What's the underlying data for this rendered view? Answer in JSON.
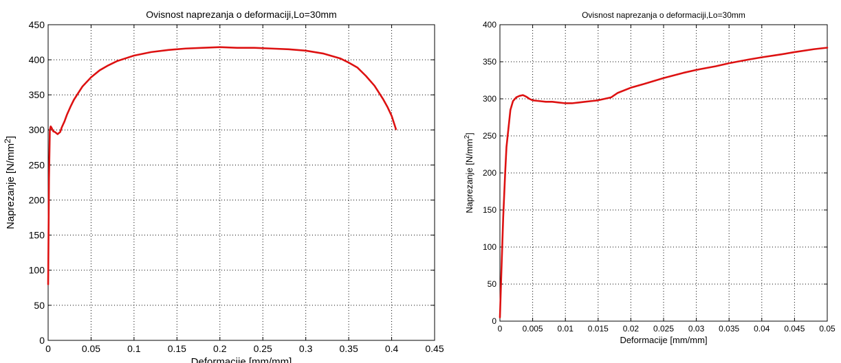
{
  "chart_data": [
    {
      "type": "line",
      "title": "Ovisnost naprezanja o deformaciji,Lo=30mm",
      "xlabel": "Deformacije [mm/mm]",
      "ylabel_main": "Naprezanje [N/mm",
      "ylabel_sup": "2",
      "ylabel_end": "]",
      "xlim": [
        0,
        0.45
      ],
      "ylim": [
        0,
        450
      ],
      "xticks": [
        0,
        0.05,
        0.1,
        0.15,
        0.2,
        0.25,
        0.3,
        0.35,
        0.4,
        0.45
      ],
      "xtick_labels": [
        "0",
        "0.05",
        "0.1",
        "0.15",
        "0.2",
        "0.25",
        "0.3",
        "0.35",
        "0.4",
        "0.45"
      ],
      "yticks": [
        0,
        50,
        100,
        150,
        200,
        250,
        300,
        350,
        400,
        450
      ],
      "ytick_labels": [
        "0",
        "50",
        "100",
        "150",
        "200",
        "250",
        "300",
        "350",
        "400",
        "450"
      ],
      "grid": true,
      "line_color": "#dd1111",
      "series": [
        {
          "x": [
            0.0,
            0.001,
            0.002,
            0.003,
            0.004,
            0.006,
            0.008,
            0.011,
            0.014,
            0.016,
            0.019,
            0.022,
            0.026,
            0.03,
            0.04,
            0.05,
            0.06,
            0.07,
            0.08,
            0.09,
            0.1,
            0.12,
            0.14,
            0.16,
            0.18,
            0.2,
            0.22,
            0.24,
            0.26,
            0.28,
            0.3,
            0.32,
            0.34,
            0.35,
            0.36,
            0.37,
            0.38,
            0.39,
            0.395,
            0.4,
            0.405
          ],
          "y": [
            80,
            230,
            300,
            305,
            303,
            298,
            297,
            294,
            297,
            304,
            312,
            322,
            333,
            343,
            362,
            375,
            385,
            392,
            398,
            402,
            406,
            411,
            414,
            416,
            417,
            418,
            417,
            417,
            416,
            415,
            413,
            409,
            402,
            396,
            389,
            377,
            363,
            344,
            333,
            320,
            301
          ]
        }
      ]
    },
    {
      "type": "line",
      "title": "Ovisnost naprezanja o deformaciji,Lo=30mm",
      "xlabel": "Deformacije [mm/mm]",
      "ylabel_main": "Naprezanje [N/mm",
      "ylabel_sup": "2",
      "ylabel_end": "]",
      "xlim": [
        0,
        0.05
      ],
      "ylim": [
        0,
        400
      ],
      "xticks": [
        0,
        0.005,
        0.01,
        0.015,
        0.02,
        0.025,
        0.03,
        0.035,
        0.04,
        0.045,
        0.05
      ],
      "xtick_labels": [
        "0",
        "0.005",
        "0.01",
        "0.015",
        "0.02",
        "0.025",
        "0.03",
        "0.035",
        "0.04",
        "0.045",
        "0.05"
      ],
      "yticks": [
        0,
        50,
        100,
        150,
        200,
        250,
        300,
        350,
        400
      ],
      "ytick_labels": [
        "0",
        "50",
        "100",
        "150",
        "200",
        "250",
        "300",
        "350",
        "400"
      ],
      "grid": true,
      "line_color": "#dd1111",
      "series": [
        {
          "x": [
            0.0,
            0.0002,
            0.0005,
            0.0008,
            0.001,
            0.0013,
            0.0016,
            0.002,
            0.0025,
            0.003,
            0.0035,
            0.004,
            0.0045,
            0.005,
            0.006,
            0.007,
            0.008,
            0.009,
            0.01,
            0.011,
            0.012,
            0.013,
            0.014,
            0.015,
            0.016,
            0.017,
            0.018,
            0.02,
            0.022,
            0.025,
            0.028,
            0.03,
            0.033,
            0.035,
            0.038,
            0.04,
            0.043,
            0.045,
            0.048,
            0.05
          ],
          "y": [
            5,
            60,
            140,
            200,
            235,
            260,
            285,
            297,
            302,
            304,
            305,
            303,
            300,
            298,
            297,
            296,
            296,
            295,
            294,
            294,
            295,
            296,
            297,
            298,
            300,
            302,
            308,
            315,
            320,
            328,
            335,
            339,
            344,
            348,
            353,
            356,
            360,
            363,
            367,
            369
          ]
        }
      ]
    }
  ]
}
